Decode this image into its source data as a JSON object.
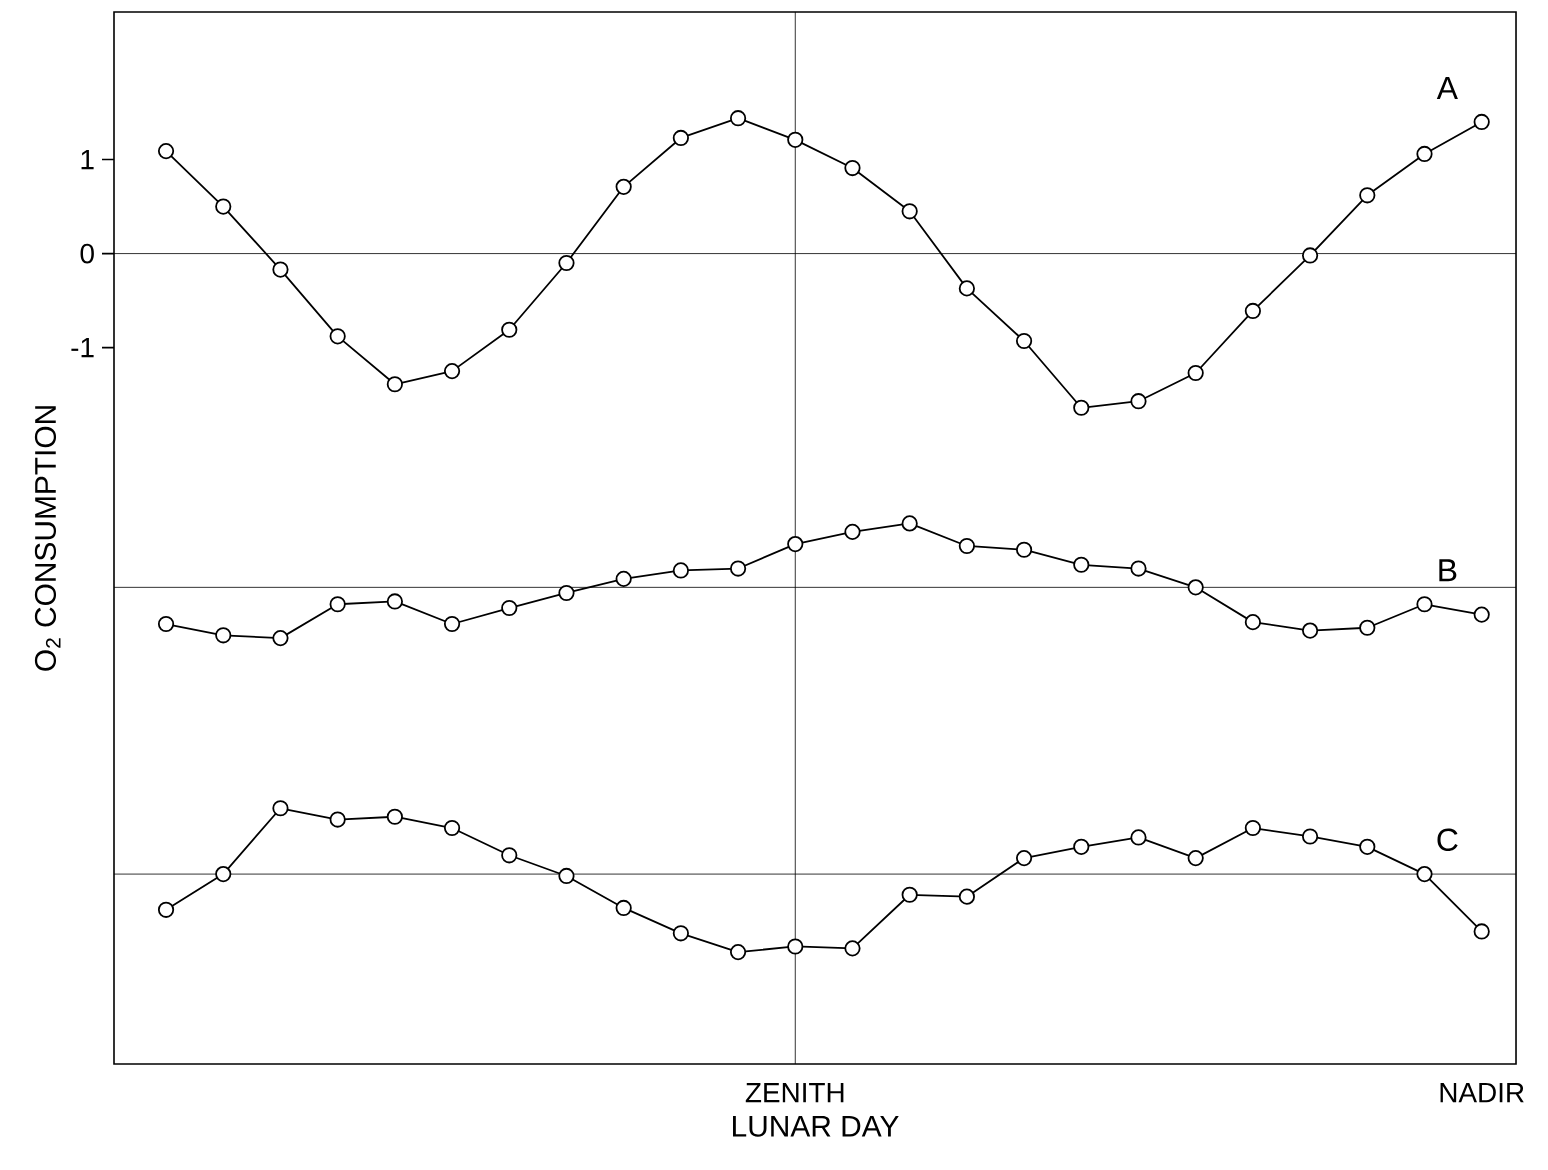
{
  "chart_data": {
    "type": "line",
    "xlabel": "LUNAR DAY",
    "ylabel": "O$_{2}$ CONSUMPTION",
    "categories": [
      null,
      null,
      null,
      null,
      null,
      null,
      null,
      null,
      null,
      null,
      null,
      "ZENITH",
      null,
      null,
      null,
      null,
      null,
      null,
      null,
      null,
      null,
      null,
      null,
      "NADIR"
    ],
    "ylim": [
      -8.62,
      2.57
    ],
    "yticks": [
      1,
      0,
      -1
    ],
    "marker": "circle",
    "line_style": "solid",
    "grid": false,
    "series": [
      {
        "name": "A",
        "color": "#000000",
        "values": [
          1.09,
          0.5,
          -0.17,
          -0.88,
          -1.39,
          -1.25,
          -0.81,
          -0.1,
          0.71,
          1.23,
          1.44,
          1.21,
          0.91,
          0.45,
          -0.37,
          -0.93,
          -1.64,
          -1.57,
          -1.27,
          -0.61,
          -0.02,
          0.62,
          1.06,
          1.4
        ]
      },
      {
        "name": "B",
        "color": "#000000",
        "values": [
          -3.94,
          -4.06,
          -4.09,
          -3.73,
          -3.7,
          -3.94,
          -3.77,
          -3.61,
          -3.46,
          -3.37,
          -3.35,
          -3.09,
          -2.96,
          -2.87,
          -3.11,
          -3.15,
          -3.31,
          -3.35,
          -3.55,
          -3.92,
          -4.01,
          -3.98,
          -3.73,
          -3.84
        ]
      },
      {
        "name": "C",
        "color": "#000000",
        "values": [
          -6.98,
          -6.6,
          -5.9,
          -6.02,
          -5.99,
          -6.11,
          -6.4,
          -6.62,
          -6.96,
          -7.23,
          -7.43,
          -7.37,
          -7.39,
          -6.82,
          -6.84,
          -6.43,
          -6.31,
          -6.21,
          -6.43,
          -6.11,
          -6.2,
          -6.31,
          -6.6,
          -7.21
        ]
      }
    ],
    "ref_lines": [
      {
        "axis": "y",
        "value": 0
      },
      {
        "axis": "y",
        "value": -3.55
      },
      {
        "axis": "y",
        "value": -6.6
      },
      {
        "axis": "x",
        "value": "ZENITH"
      }
    ]
  }
}
